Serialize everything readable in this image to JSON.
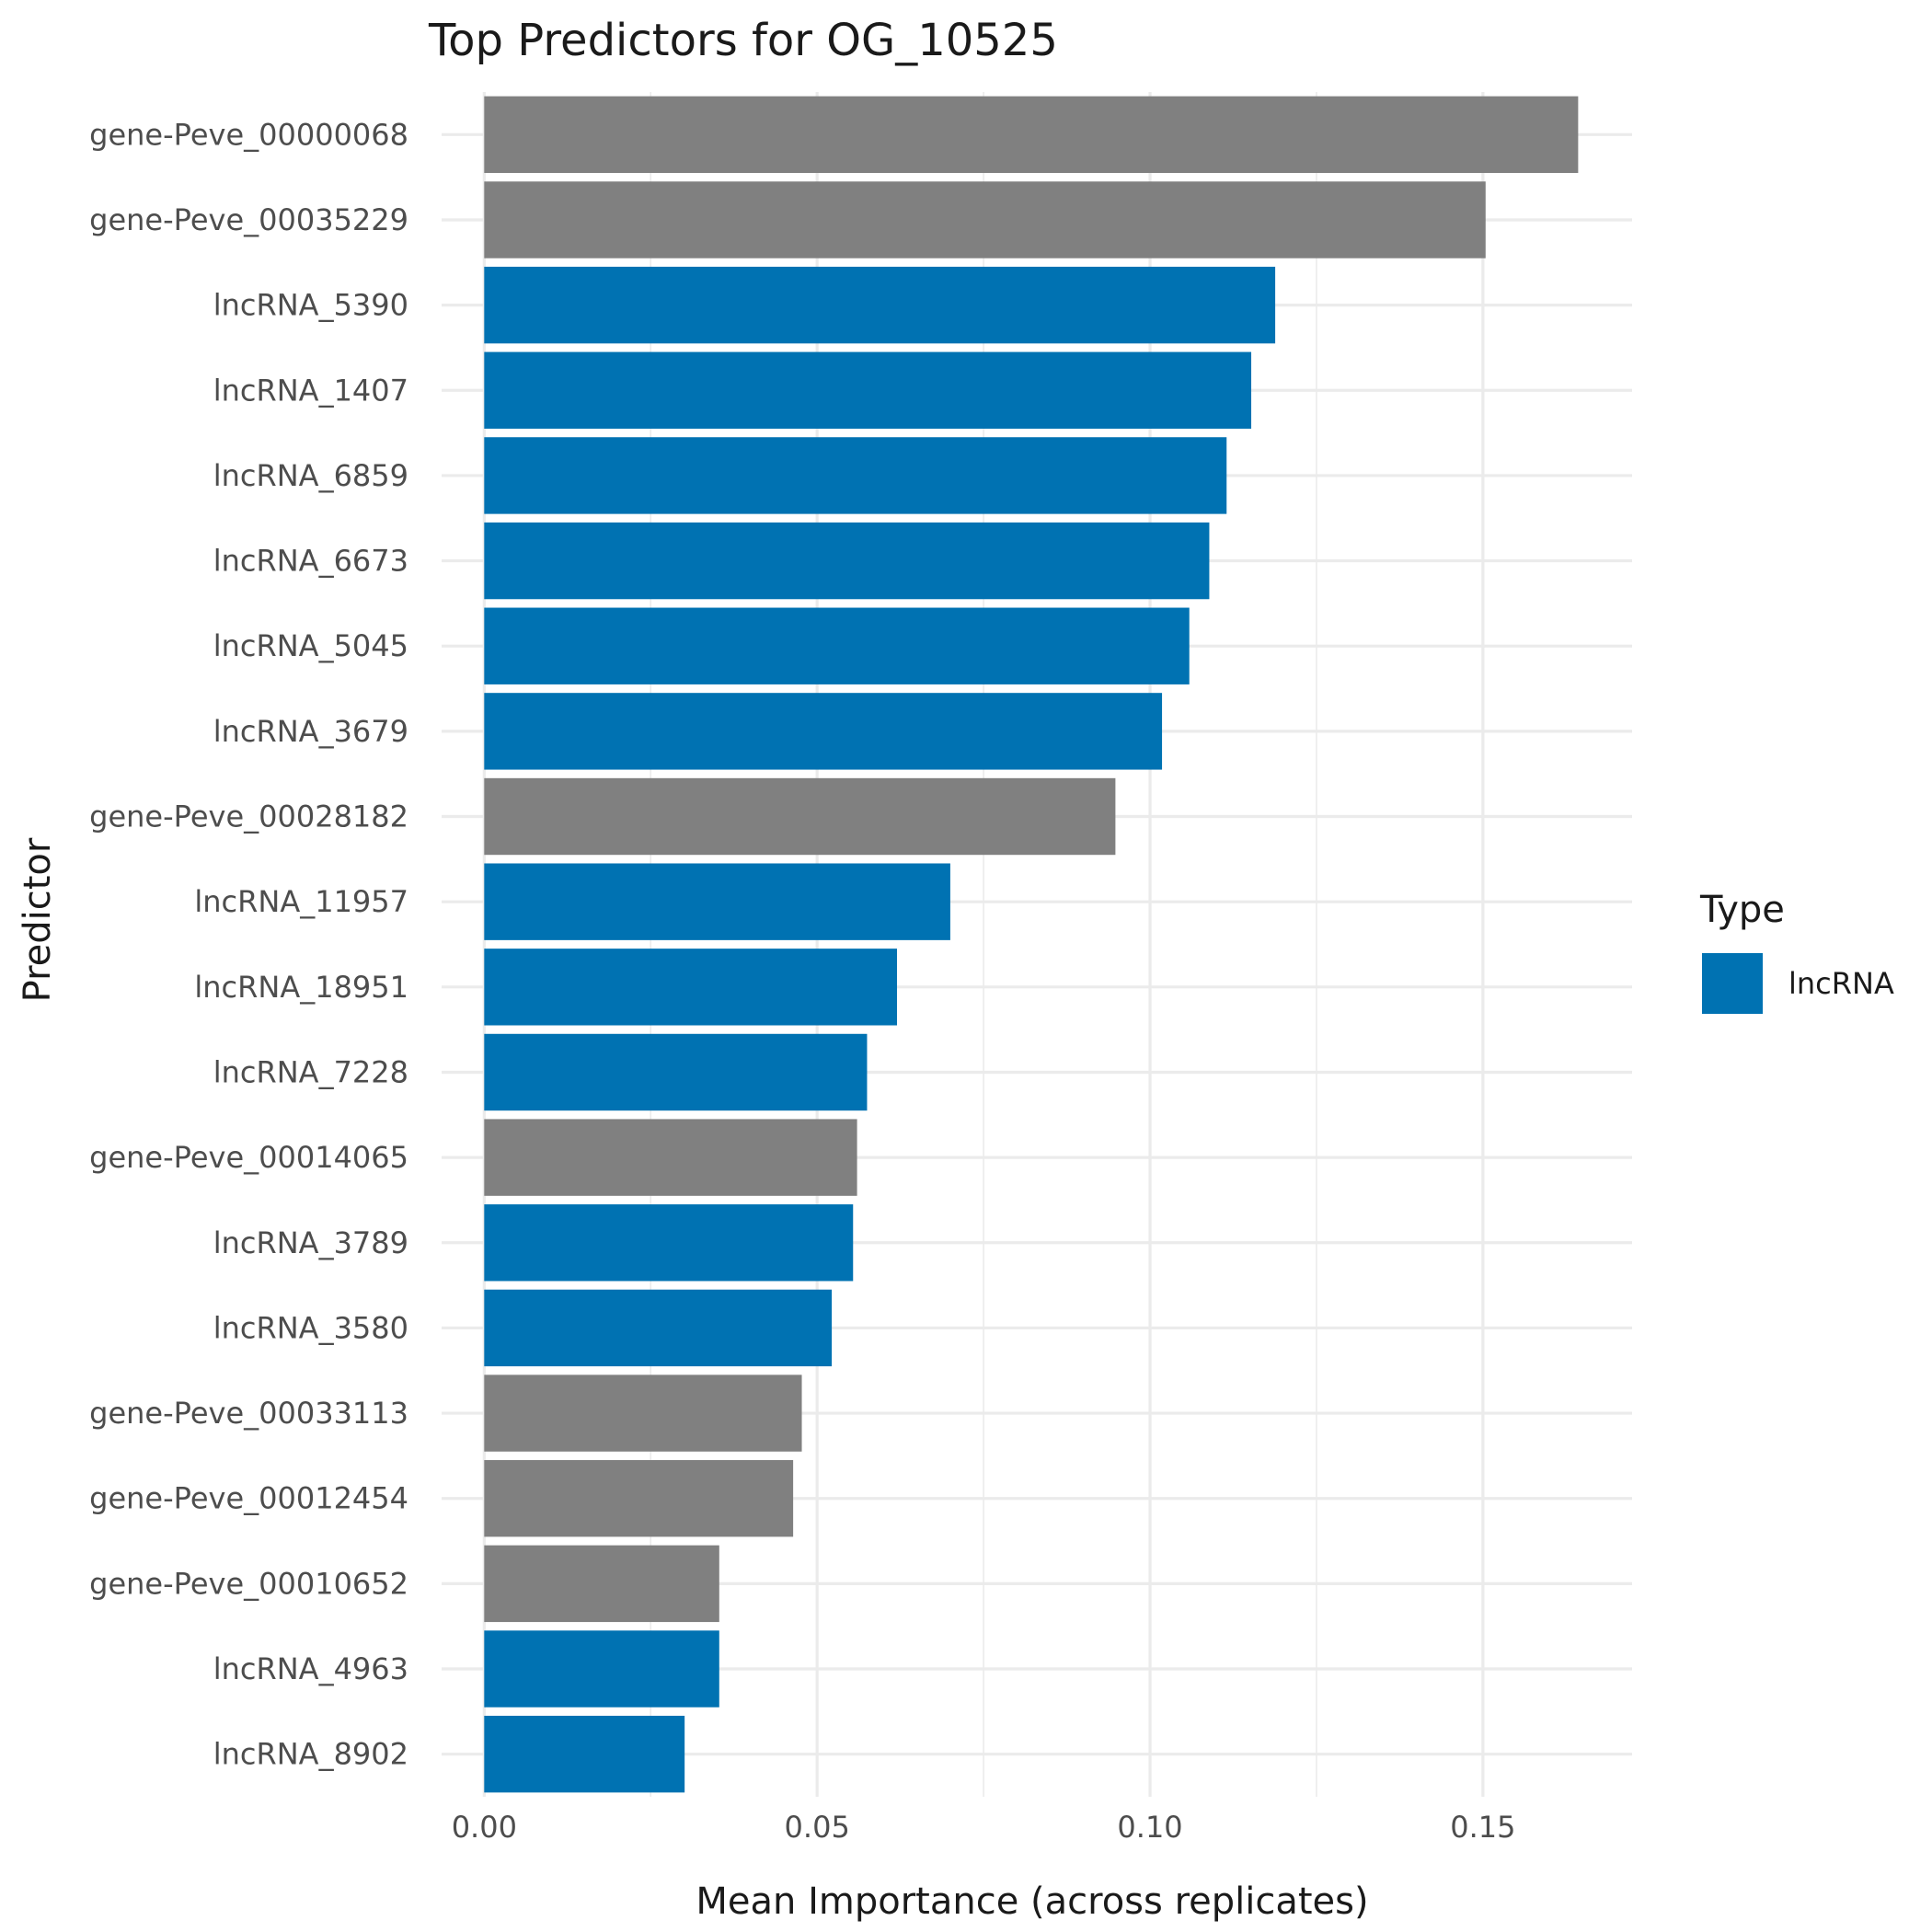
{
  "chart_data": {
    "type": "bar",
    "orientation": "horizontal",
    "title": "Top Predictors for OG_10525",
    "xlabel": "Mean Importance (across replicates)",
    "ylabel": "Predictor",
    "xlim": [
      -0.0064,
      0.1724
    ],
    "x_ticks": [
      0.0,
      0.05,
      0.1,
      0.15
    ],
    "x_tick_labels": [
      "0.00",
      "0.05",
      "0.10",
      "0.15"
    ],
    "grid": true,
    "legend": {
      "title": "Type",
      "position": "right",
      "entries": [
        {
          "label": "lncRNA",
          "color": "#0072B2"
        }
      ]
    },
    "colors": {
      "lncRNA": "#0072B2",
      "gene": "#808080",
      "grid": "#ebebeb",
      "tick_text": "#4d4d4d",
      "title_text": "#1a1a1a"
    },
    "categories": [
      "gene-Peve_00000068",
      "gene-Peve_00035229",
      "lncRNA_5390",
      "lncRNA_1407",
      "lncRNA_6859",
      "lncRNA_6673",
      "lncRNA_5045",
      "lncRNA_3679",
      "gene-Peve_00028182",
      "lncRNA_11957",
      "lncRNA_18951",
      "lncRNA_7228",
      "gene-Peve_00014065",
      "lncRNA_3789",
      "lncRNA_3580",
      "gene-Peve_00033113",
      "gene-Peve_00012454",
      "gene-Peve_00010652",
      "lncRNA_4963",
      "lncRNA_8902"
    ],
    "values": [
      0.1643,
      0.1504,
      0.1188,
      0.1152,
      0.1115,
      0.1089,
      0.1059,
      0.1018,
      0.0948,
      0.07,
      0.062,
      0.0575,
      0.056,
      0.0554,
      0.0522,
      0.0477,
      0.0464,
      0.0353,
      0.0353,
      0.0301
    ],
    "types": [
      "gene",
      "gene",
      "lncRNA",
      "lncRNA",
      "lncRNA",
      "lncRNA",
      "lncRNA",
      "lncRNA",
      "gene",
      "lncRNA",
      "lncRNA",
      "lncRNA",
      "gene",
      "lncRNA",
      "lncRNA",
      "gene",
      "gene",
      "gene",
      "lncRNA",
      "lncRNA"
    ]
  }
}
